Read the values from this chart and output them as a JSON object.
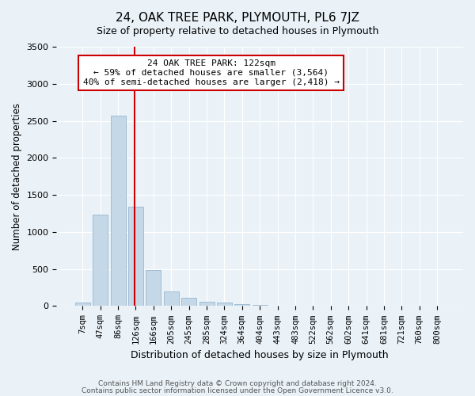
{
  "title": "24, OAK TREE PARK, PLYMOUTH, PL6 7JZ",
  "subtitle": "Size of property relative to detached houses in Plymouth",
  "xlabel": "Distribution of detached houses by size in Plymouth",
  "ylabel": "Number of detached properties",
  "bar_labels": [
    "7sqm",
    "47sqm",
    "86sqm",
    "126sqm",
    "166sqm",
    "205sqm",
    "245sqm",
    "285sqm",
    "324sqm",
    "364sqm",
    "404sqm",
    "443sqm",
    "483sqm",
    "522sqm",
    "562sqm",
    "602sqm",
    "641sqm",
    "681sqm",
    "721sqm",
    "760sqm",
    "800sqm"
  ],
  "bar_values": [
    50,
    1230,
    2570,
    1340,
    490,
    200,
    115,
    55,
    45,
    30,
    15,
    10,
    5,
    0,
    0,
    0,
    0,
    0,
    0,
    0,
    0
  ],
  "bar_color": "#c5d8e8",
  "bar_edgecolor": "#a0bdd4",
  "vline_pos": 2.93,
  "vline_color": "#cc0000",
  "ylim": [
    0,
    3500
  ],
  "yticks": [
    0,
    500,
    1000,
    1500,
    2000,
    2500,
    3000,
    3500
  ],
  "annotation_title": "24 OAK TREE PARK: 122sqm",
  "annotation_line1": "← 59% of detached houses are smaller (3,564)",
  "annotation_line2": "40% of semi-detached houses are larger (2,418) →",
  "annotation_box_color": "#cc0000",
  "footer_line1": "Contains HM Land Registry data © Crown copyright and database right 2024.",
  "footer_line2": "Contains public sector information licensed under the Open Government Licence v3.0.",
  "background_color": "#eaf2f8",
  "grid_color": "#ffffff"
}
